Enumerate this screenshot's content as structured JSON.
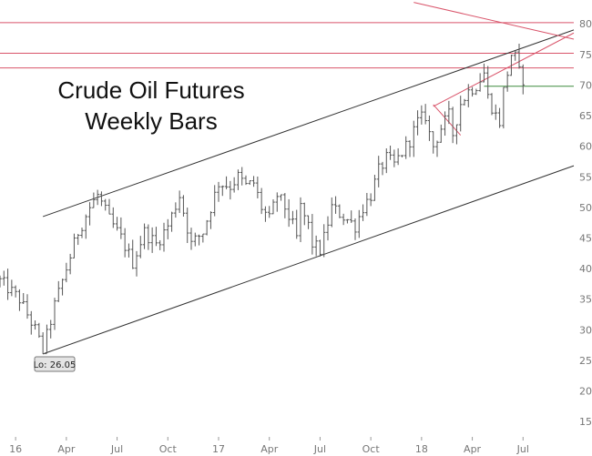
{
  "chart_data": {
    "type": "ohlc",
    "title_lines": [
      "Crude Oil Futures",
      "Weekly Bars"
    ],
    "y_ticks": [
      15,
      20,
      25,
      30,
      35,
      40,
      45,
      50,
      55,
      60,
      65,
      70,
      75,
      80
    ],
    "ylim": [
      12.5,
      83
    ],
    "x_ticks": [
      {
        "label": "16",
        "t": 0
      },
      {
        "label": "Apr",
        "t": 13
      },
      {
        "label": "Jul",
        "t": 26
      },
      {
        "label": "Oct",
        "t": 39
      },
      {
        "label": "17",
        "t": 52
      },
      {
        "label": "Apr",
        "t": 65
      },
      {
        "label": "Jul",
        "t": 78
      },
      {
        "label": "Oct",
        "t": 91
      },
      {
        "label": "18",
        "t": 104
      },
      {
        "label": "Apr",
        "t": 117
      },
      {
        "label": "Jul",
        "t": 130
      }
    ],
    "xlim": [
      -4,
      143
    ],
    "anchors": [
      [
        -4,
        38
      ],
      [
        1,
        35
      ],
      [
        5,
        30
      ],
      [
        7,
        26.5
      ],
      [
        10,
        34
      ],
      [
        13,
        40
      ],
      [
        16,
        46
      ],
      [
        19,
        50
      ],
      [
        21,
        52
      ],
      [
        24,
        48
      ],
      [
        27,
        45
      ],
      [
        30,
        41
      ],
      [
        33,
        46
      ],
      [
        36,
        44
      ],
      [
        39,
        47
      ],
      [
        42,
        52
      ],
      [
        45,
        44
      ],
      [
        48,
        46
      ],
      [
        50,
        50
      ],
      [
        52,
        54
      ],
      [
        55,
        53.5
      ],
      [
        57,
        55
      ],
      [
        59,
        53.5
      ],
      [
        61,
        54
      ],
      [
        63,
        50
      ],
      [
        65,
        48
      ],
      [
        67,
        52
      ],
      [
        69,
        50
      ],
      [
        71,
        47
      ],
      [
        72,
        45
      ],
      [
        73,
        50
      ],
      [
        75,
        47
      ],
      [
        76,
        44
      ],
      [
        78,
        43
      ],
      [
        79,
        45
      ],
      [
        81,
        50
      ],
      [
        83,
        49
      ],
      [
        85,
        48
      ],
      [
        87,
        47
      ],
      [
        89,
        50
      ],
      [
        91,
        52
      ],
      [
        93,
        56
      ],
      [
        95,
        58
      ],
      [
        97,
        57
      ],
      [
        99,
        59
      ],
      [
        101,
        61
      ],
      [
        103,
        64
      ],
      [
        105,
        65
      ],
      [
        106,
        62
      ],
      [
        107,
        60
      ],
      [
        109,
        63
      ],
      [
        111,
        65
      ],
      [
        112,
        62
      ],
      [
        114,
        67
      ],
      [
        116,
        69
      ],
      [
        118,
        70
      ],
      [
        120,
        72
      ],
      [
        121,
        68
      ],
      [
        123,
        65
      ],
      [
        124,
        64
      ],
      [
        125,
        69
      ],
      [
        126,
        72
      ],
      [
        127,
        75
      ],
      [
        128,
        74.5
      ],
      [
        129,
        72
      ],
      [
        130,
        71
      ]
    ],
    "volatility": 1.4,
    "low_label": "Lo: 26.05",
    "low_point": {
      "t": 7,
      "y": 26.05
    },
    "horizontal_lines": [
      {
        "y": 80.2,
        "color": "#d9546a"
      },
      {
        "y": 75.2,
        "color": "#d9546a"
      },
      {
        "y": 72.8,
        "color": "#d9546a"
      },
      {
        "y": 69.8,
        "color": "#3d8a3d",
        "from_t": 120,
        "to_t": 143
      }
    ],
    "channel_lines": [
      {
        "from": [
          7,
          48.5
        ],
        "to": [
          143,
          79
        ],
        "color": "#333333"
      },
      {
        "from": [
          7,
          26.05
        ],
        "to": [
          143,
          56.8
        ],
        "color": "#333333"
      }
    ],
    "red_trend_lines": [
      {
        "from": [
          107,
          66.5
        ],
        "to": [
          143,
          78.5
        ],
        "color": "#d9546a"
      },
      {
        "from": [
          107,
          66.8
        ],
        "to": [
          114,
          61.8
        ],
        "color": "#d9546a"
      },
      {
        "from": [
          102,
          83.5
        ],
        "to": [
          143,
          77.5
        ],
        "color": "#d9546a"
      }
    ]
  }
}
